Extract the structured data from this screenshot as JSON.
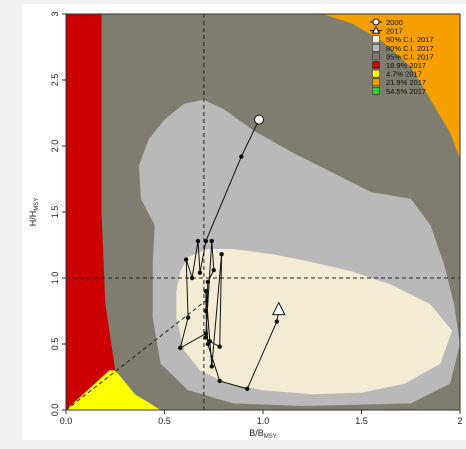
{
  "chart_data": {
    "type": "scatter",
    "title": "",
    "xlabel": "B/B",
    "xlabel_sub": "MSY",
    "ylabel": "H/H",
    "ylabel_sub": "MSY",
    "xlim": [
      0,
      2
    ],
    "ylim": [
      0,
      3
    ],
    "x_ticks": [
      0,
      0.5,
      1,
      1.5,
      2
    ],
    "x_tick_labels": [
      "0.0",
      "0.5",
      "1.0",
      "1.5",
      "2"
    ],
    "y_ticks": [
      0,
      0.5,
      1,
      1.5,
      2,
      2.5,
      3
    ],
    "y_tick_labels": [
      "0.0",
      "0.5",
      "1.0",
      "1.5",
      "2.0",
      "2.5",
      "3"
    ],
    "reference_lines": {
      "vertical_x": 0.7,
      "horizontal_y": 1.0
    },
    "legend_position": "top-right",
    "legend": [
      {
        "label": "2000",
        "symbol": "circle"
      },
      {
        "label": "2017",
        "symbol": "triangle"
      },
      {
        "label": "50% C.I. 2017",
        "color": "#f1ecd3"
      },
      {
        "label": "80% C.I. 2017",
        "color": "#b9b9b9"
      },
      {
        "label": "95% C.I. 2017",
        "color": "#7e7d70"
      },
      {
        "label": "18.9% 2017",
        "color": "#cc0000"
      },
      {
        "label": "4.7% 2017",
        "color": "#ffff00"
      },
      {
        "label": "21.9% 2017",
        "color": "#f5a000"
      },
      {
        "label": "54.5% 2017",
        "color": "#33cc33"
      }
    ],
    "quadrant_colors": {
      "red": "#cc0000",
      "yellow": "#ffff00",
      "orange": "#f5a000",
      "green": "#33cc33"
    },
    "regions": [
      {
        "name": "95% C.I. 2017",
        "color": "#7e7d70",
        "points": [
          [
            0.18,
            3.0
          ],
          [
            1.3,
            3.0
          ],
          [
            1.45,
            2.93
          ],
          [
            1.6,
            2.8
          ],
          [
            1.75,
            2.6
          ],
          [
            1.85,
            2.35
          ],
          [
            1.95,
            2.1
          ],
          [
            2.0,
            1.9
          ],
          [
            2.0,
            0
          ],
          [
            0.48,
            0
          ],
          [
            0.35,
            0.12
          ],
          [
            0.25,
            0.3
          ],
          [
            0.2,
            0.8
          ],
          [
            0.18,
            1.5
          ]
        ]
      },
      {
        "name": "80% C.I. 2017",
        "color": "#b9b9b9",
        "points": [
          [
            0.45,
            1.4
          ],
          [
            0.38,
            1.6
          ],
          [
            0.37,
            1.85
          ],
          [
            0.42,
            2.05
          ],
          [
            0.5,
            2.2
          ],
          [
            0.6,
            2.32
          ],
          [
            0.7,
            2.35
          ],
          [
            0.8,
            2.28
          ],
          [
            0.95,
            2.12
          ],
          [
            1.15,
            1.95
          ],
          [
            1.35,
            1.8
          ],
          [
            1.55,
            1.65
          ],
          [
            1.75,
            1.6
          ],
          [
            1.85,
            1.4
          ],
          [
            1.92,
            1.1
          ],
          [
            1.97,
            0.8
          ],
          [
            2.0,
            0.5
          ],
          [
            1.95,
            0.2
          ],
          [
            1.75,
            0.05
          ],
          [
            1.2,
            0.03
          ],
          [
            0.85,
            0.05
          ],
          [
            0.62,
            0.15
          ],
          [
            0.48,
            0.35
          ],
          [
            0.44,
            0.7
          ],
          [
            0.44,
            1.1
          ]
        ]
      },
      {
        "name": "50% C.I. 2017",
        "color": "#f1ecd3",
        "points": [
          [
            0.58,
            1.05
          ],
          [
            0.62,
            1.16
          ],
          [
            0.72,
            1.22
          ],
          [
            0.85,
            1.22
          ],
          [
            1.05,
            1.18
          ],
          [
            1.25,
            1.12
          ],
          [
            1.45,
            1.05
          ],
          [
            1.65,
            0.95
          ],
          [
            1.85,
            0.8
          ],
          [
            1.96,
            0.6
          ],
          [
            1.9,
            0.35
          ],
          [
            1.72,
            0.2
          ],
          [
            1.5,
            0.13
          ],
          [
            1.25,
            0.12
          ],
          [
            1.0,
            0.15
          ],
          [
            0.82,
            0.2
          ],
          [
            0.68,
            0.3
          ],
          [
            0.6,
            0.45
          ],
          [
            0.56,
            0.7
          ],
          [
            0.56,
            0.9
          ]
        ]
      },
      {
        "name": "18.9% 2017",
        "color": "#cc0000",
        "points": [
          [
            0,
            3.0
          ],
          [
            0.18,
            3.0
          ],
          [
            0.18,
            1.5
          ],
          [
            0.2,
            0.8
          ],
          [
            0.25,
            0.3
          ],
          [
            0.22,
            0.3
          ],
          [
            0,
            0
          ]
        ]
      },
      {
        "name": "4.7% 2017",
        "color": "#ffff00",
        "points": [
          [
            0,
            0
          ],
          [
            0.22,
            0.3
          ],
          [
            0.25,
            0.3
          ],
          [
            0.35,
            0.12
          ],
          [
            0.48,
            0
          ]
        ]
      },
      {
        "name": "21.9% 2017",
        "color": "#f5a000",
        "points": [
          [
            1.3,
            3.0
          ],
          [
            2.0,
            3.0
          ],
          [
            2.0,
            1.9
          ],
          [
            1.95,
            2.1
          ],
          [
            1.85,
            2.35
          ],
          [
            1.75,
            2.6
          ],
          [
            1.6,
            2.8
          ],
          [
            1.45,
            2.93
          ]
        ]
      }
    ],
    "series": [
      {
        "name": "trajectory",
        "x": [
          0.98,
          0.89,
          0.71,
          0.68,
          0.67,
          0.64,
          0.61,
          0.62,
          0.58,
          0.71,
          0.74,
          0.75,
          0.72,
          0.71,
          0.73,
          0.78,
          0.79,
          0.74,
          0.71,
          0.71,
          0.72,
          0.78,
          0.92,
          1.07,
          1.08
        ],
        "y": [
          2.2,
          1.92,
          1.28,
          1.04,
          1.28,
          1.0,
          1.14,
          0.7,
          0.47,
          0.58,
          1.28,
          1.06,
          0.97,
          0.55,
          0.52,
          0.48,
          1.18,
          0.33,
          0.9,
          0.75,
          0.5,
          0.22,
          0.16,
          0.67,
          0.76
        ]
      }
    ],
    "dashed_segment": {
      "x": [
        0,
        0.72
      ],
      "y": [
        0,
        0.84
      ]
    }
  }
}
